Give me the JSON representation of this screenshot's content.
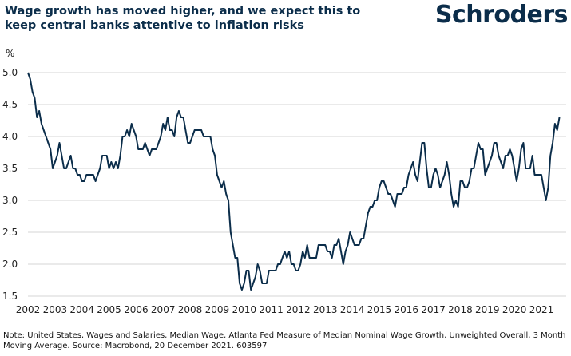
{
  "header": {
    "title": "Wage growth has moved higher, and we expect this to keep central banks attentive to inflation risks",
    "logo_text": "Schroders"
  },
  "footnote": "Note: United States, Wages and Salaries, Median Wage, Atlanta Fed Measure of Median Nominal Wage Growth, Unweighted Overall, 3 Month Moving Average. Source: Macrobond, 20 December 2021. 603597",
  "colors": {
    "line": "#0b2d4a",
    "grid": "#d6d6d6",
    "brand": "#0b2d4a"
  },
  "chart_data": {
    "type": "line",
    "title": "Wage growth has moved higher, and we expect this to keep central banks attentive to inflation risks",
    "ylabel": "%",
    "xlabel": "",
    "ylim": [
      1.5,
      5.0
    ],
    "xlim": [
      2002.0,
      2021.917
    ],
    "yticks": [
      "1.5",
      "2.0",
      "2.5",
      "3.0",
      "3.5",
      "4.0",
      "4.5",
      "5.0"
    ],
    "xticks": [
      "2002",
      "2003",
      "2004",
      "2005",
      "2006",
      "2007",
      "2008",
      "2009",
      "2010",
      "2011",
      "2012",
      "2013",
      "2014",
      "2015",
      "2016",
      "2017",
      "2018",
      "2019",
      "2020",
      "2021"
    ],
    "grid": true,
    "series": [
      {
        "name": "Atlanta Fed Median Nominal Wage Growth, 3M MA",
        "frequency": "monthly",
        "start": "2002-01",
        "values": [
          5.0,
          4.9,
          4.7,
          4.6,
          4.3,
          4.4,
          4.2,
          4.1,
          4.0,
          3.9,
          3.8,
          3.5,
          3.6,
          3.7,
          3.9,
          3.7,
          3.5,
          3.5,
          3.6,
          3.7,
          3.5,
          3.5,
          3.4,
          3.4,
          3.3,
          3.3,
          3.4,
          3.4,
          3.4,
          3.4,
          3.3,
          3.4,
          3.5,
          3.7,
          3.7,
          3.7,
          3.5,
          3.6,
          3.5,
          3.6,
          3.5,
          3.7,
          4.0,
          4.0,
          4.1,
          4.0,
          4.2,
          4.1,
          4.0,
          3.8,
          3.8,
          3.8,
          3.9,
          3.8,
          3.7,
          3.8,
          3.8,
          3.8,
          3.9,
          4.0,
          4.2,
          4.1,
          4.3,
          4.1,
          4.1,
          4.0,
          4.3,
          4.4,
          4.3,
          4.3,
          4.1,
          3.9,
          3.9,
          4.0,
          4.1,
          4.1,
          4.1,
          4.1,
          4.0,
          4.0,
          4.0,
          4.0,
          3.8,
          3.7,
          3.4,
          3.3,
          3.2,
          3.3,
          3.1,
          3.0,
          2.5,
          2.3,
          2.1,
          2.1,
          1.7,
          1.6,
          1.7,
          1.9,
          1.9,
          1.6,
          1.7,
          1.8,
          2.0,
          1.9,
          1.7,
          1.7,
          1.7,
          1.9,
          1.9,
          1.9,
          1.9,
          2.0,
          2.0,
          2.1,
          2.2,
          2.1,
          2.2,
          2.0,
          2.0,
          1.9,
          1.9,
          2.0,
          2.2,
          2.1,
          2.3,
          2.1,
          2.1,
          2.1,
          2.1,
          2.3,
          2.3,
          2.3,
          2.3,
          2.2,
          2.2,
          2.1,
          2.3,
          2.3,
          2.4,
          2.2,
          2.0,
          2.2,
          2.3,
          2.5,
          2.4,
          2.3,
          2.3,
          2.3,
          2.4,
          2.4,
          2.6,
          2.8,
          2.9,
          2.9,
          3.0,
          3.0,
          3.2,
          3.3,
          3.3,
          3.2,
          3.1,
          3.1,
          3.0,
          2.9,
          3.1,
          3.1,
          3.1,
          3.2,
          3.2,
          3.4,
          3.5,
          3.6,
          3.4,
          3.3,
          3.6,
          3.9,
          3.9,
          3.5,
          3.2,
          3.2,
          3.4,
          3.5,
          3.4,
          3.2,
          3.3,
          3.4,
          3.6,
          3.4,
          3.1,
          2.9,
          3.0,
          2.9,
          3.3,
          3.3,
          3.2,
          3.2,
          3.3,
          3.5,
          3.5,
          3.7,
          3.9,
          3.8,
          3.8,
          3.4,
          3.5,
          3.6,
          3.7,
          3.9,
          3.9,
          3.7,
          3.6,
          3.5,
          3.7,
          3.7,
          3.8,
          3.7,
          3.5,
          3.3,
          3.5,
          3.8,
          3.9,
          3.5,
          3.5,
          3.5,
          3.7,
          3.4,
          3.4,
          3.4,
          3.4,
          3.2,
          3.0,
          3.2,
          3.7,
          3.9,
          4.2,
          4.1,
          4.3
        ]
      }
    ]
  }
}
